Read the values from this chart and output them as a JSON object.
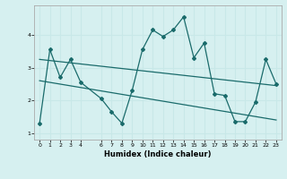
{
  "title": "",
  "xlabel": "Humidex (Indice chaleur)",
  "ylabel": "",
  "bg_color": "#d6f0f0",
  "line_color": "#1a6b6b",
  "grid_color": "#c8e8e8",
  "main_series_x": [
    0,
    1,
    2,
    3,
    4,
    6,
    7,
    8,
    9,
    10,
    11,
    12,
    13,
    14,
    15,
    16,
    17,
    18,
    19,
    20,
    21,
    22,
    23
  ],
  "main_series_y": [
    1.3,
    3.55,
    2.7,
    3.25,
    2.55,
    2.05,
    1.65,
    1.3,
    2.3,
    3.55,
    4.15,
    3.95,
    4.15,
    4.55,
    3.3,
    3.75,
    2.2,
    2.15,
    1.35,
    1.35,
    1.95,
    3.25,
    2.5
  ],
  "upper_line_x": [
    0,
    23
  ],
  "upper_line_y": [
    3.25,
    2.45
  ],
  "lower_line_x": [
    0,
    23
  ],
  "lower_line_y": [
    2.6,
    1.4
  ],
  "xlim": [
    -0.5,
    23.5
  ],
  "ylim": [
    0.8,
    4.9
  ],
  "yticks": [
    1,
    2,
    3,
    4
  ],
  "xticks": [
    0,
    1,
    2,
    3,
    4,
    6,
    7,
    8,
    9,
    10,
    11,
    12,
    13,
    14,
    15,
    16,
    17,
    18,
    19,
    20,
    21,
    22,
    23
  ]
}
